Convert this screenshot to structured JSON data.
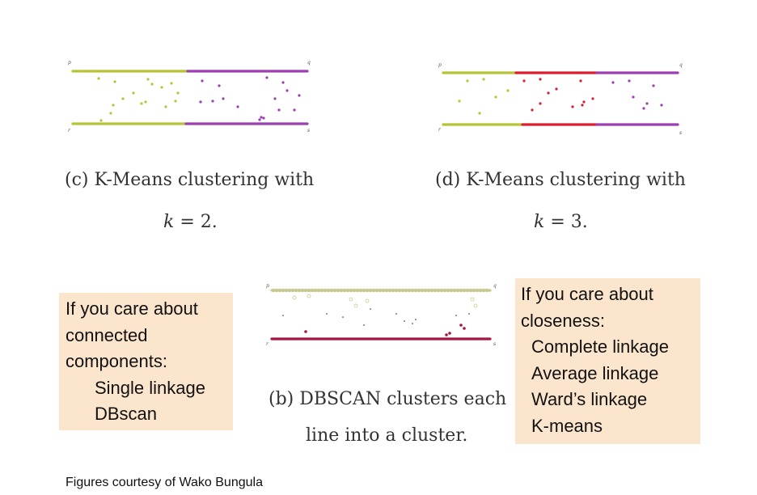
{
  "panels": {
    "c": {
      "caption_line1": "(c) K-Means clustering with",
      "caption_var": "k",
      "caption_eq": " = 2.",
      "corner_labels": [
        "p",
        "q",
        "r",
        "s"
      ],
      "colors": {
        "left": "#b8c235",
        "right": "#9b3fb0"
      }
    },
    "d": {
      "caption_line1": "(d) K-Means clustering with",
      "caption_var": "k",
      "caption_eq": " = 3.",
      "corner_labels": [
        "p",
        "q",
        "r",
        "s"
      ],
      "colors": {
        "left": "#b8c235",
        "middle": "#d91e2e",
        "right": "#9b3fb0"
      }
    },
    "b": {
      "caption_line1": "(b) DBSCAN clusters each",
      "caption_line2": "line into a cluster.",
      "corner_labels": [
        "p",
        "q",
        "r",
        "s"
      ],
      "colors": {
        "top": "#c9c98f",
        "bottom": "#a8143f",
        "noise": "#222222"
      }
    }
  },
  "left_box": {
    "lines": [
      "If you care about",
      "connected",
      "components:"
    ],
    "items": [
      "Single linkage",
      "DBscan"
    ]
  },
  "right_box": {
    "lines": [
      "If you care about",
      "closeness:"
    ],
    "items": [
      "Complete linkage",
      "Average linkage",
      "Ward’s linkage",
      "K-means"
    ]
  },
  "credit": "Figures courtesy of Wako Bungula"
}
